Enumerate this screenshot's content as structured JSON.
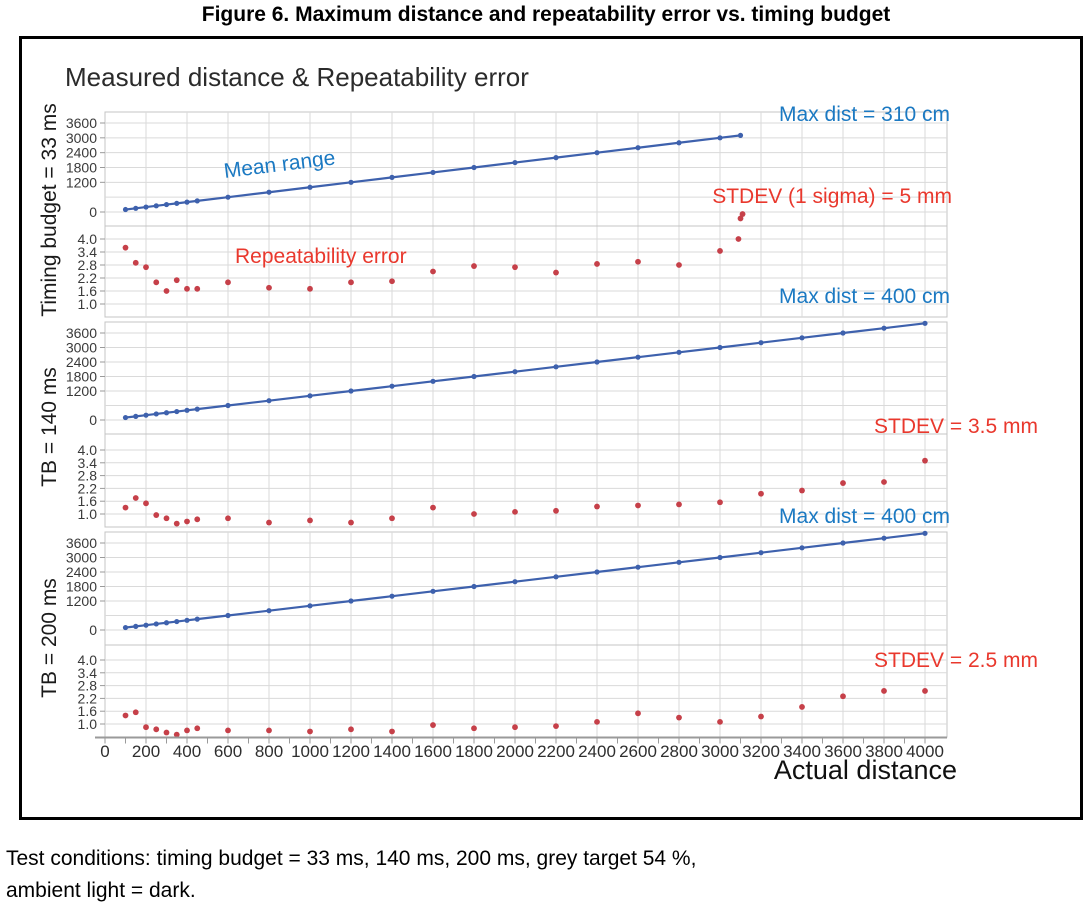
{
  "figure": {
    "title": "Figure 6. Maximum distance and repeatability error vs. timing budget",
    "caption_line1": "Test conditions: timing budget = 33 ms, 140 ms, 200 ms, grey target 54 %,",
    "caption_line2": "ambient light = dark."
  },
  "chart_data": {
    "type": "line",
    "title": "Measured distance & Repeatability error",
    "xlabel": "Actual distance",
    "x_ticks": [
      0,
      200,
      400,
      600,
      800,
      1000,
      1200,
      1400,
      1600,
      1800,
      2000,
      2200,
      2400,
      2600,
      2800,
      3000,
      3200,
      3400,
      3600,
      3800,
      4000
    ],
    "x_range": [
      0,
      4100
    ],
    "grid": true,
    "legend_position": "inline-annotations",
    "range_axis": {
      "ticks": [
        0,
        1200,
        1800,
        2400,
        3000,
        3600
      ],
      "unlabeled_gridlines": [
        600
      ]
    },
    "error_axis": {
      "ticks": [
        1.0,
        1.6,
        2.2,
        2.8,
        3.4,
        4.0
      ]
    },
    "series_labels": {
      "mean_range": "Mean range",
      "repeatability": "Repeatability error"
    },
    "colors": {
      "mean_range": "#3E61AD",
      "repeatability": "#C64049",
      "blue_text": "#1B79C2",
      "red_text": "#E9382D"
    },
    "panels": [
      {
        "group_label": "Timing budget = 33 ms",
        "max_dist_annotation": "Max dist = 310 cm",
        "stdev_annotation": "STDEV (1 sigma) = 5 mm",
        "mean_range": {
          "x": [
            100,
            150,
            200,
            250,
            300,
            350,
            400,
            450,
            600,
            800,
            1000,
            1200,
            1400,
            1600,
            1800,
            2000,
            2200,
            2400,
            2600,
            2800,
            3000,
            3100
          ],
          "y": [
            100,
            150,
            200,
            250,
            300,
            350,
            400,
            450,
            600,
            800,
            1000,
            1200,
            1400,
            1600,
            1800,
            2000,
            2200,
            2400,
            2600,
            2800,
            3000,
            3100
          ]
        },
        "repeatability": {
          "x": [
            100,
            150,
            200,
            250,
            300,
            350,
            400,
            450,
            600,
            800,
            1000,
            1200,
            1400,
            1600,
            1800,
            2000,
            2200,
            2400,
            2600,
            2800,
            3000,
            3090,
            3100,
            3110
          ],
          "y": [
            3.6,
            2.9,
            2.7,
            2.0,
            1.6,
            2.1,
            1.7,
            1.7,
            2.0,
            1.75,
            1.7,
            2.0,
            2.05,
            2.5,
            2.75,
            2.7,
            2.45,
            2.85,
            2.95,
            2.8,
            3.45,
            4.0,
            4.95,
            5.15
          ]
        }
      },
      {
        "group_label": "TB = 140 ms",
        "max_dist_annotation": "Max dist = 400 cm",
        "stdev_annotation": "STDEV = 3.5 mm",
        "mean_range": {
          "x": [
            100,
            150,
            200,
            250,
            300,
            350,
            400,
            450,
            600,
            800,
            1000,
            1200,
            1400,
            1600,
            1800,
            2000,
            2200,
            2400,
            2600,
            2800,
            3000,
            3200,
            3400,
            3600,
            3800,
            4000
          ],
          "y": [
            100,
            150,
            200,
            250,
            300,
            350,
            400,
            450,
            600,
            800,
            1000,
            1200,
            1400,
            1600,
            1800,
            2000,
            2200,
            2400,
            2600,
            2800,
            3000,
            3200,
            3400,
            3600,
            3800,
            4000
          ]
        },
        "repeatability": {
          "x": [
            100,
            150,
            200,
            250,
            300,
            350,
            400,
            450,
            600,
            800,
            1000,
            1200,
            1400,
            1600,
            1800,
            2000,
            2200,
            2400,
            2600,
            2800,
            3000,
            3200,
            3400,
            3600,
            3800,
            4000
          ],
          "y": [
            1.3,
            1.75,
            1.5,
            0.95,
            0.8,
            0.55,
            0.65,
            0.75,
            0.8,
            0.6,
            0.7,
            0.6,
            0.8,
            1.3,
            1.0,
            1.1,
            1.15,
            1.35,
            1.4,
            1.45,
            1.55,
            1.95,
            2.1,
            2.45,
            2.5,
            3.5
          ]
        }
      },
      {
        "group_label": "TB = 200 ms",
        "max_dist_annotation": "Max dist = 400 cm",
        "stdev_annotation": "STDEV =  2.5 mm",
        "mean_range": {
          "x": [
            100,
            150,
            200,
            250,
            300,
            350,
            400,
            450,
            600,
            800,
            1000,
            1200,
            1400,
            1600,
            1800,
            2000,
            2200,
            2400,
            2600,
            2800,
            3000,
            3200,
            3400,
            3600,
            3800,
            4000
          ],
          "y": [
            100,
            150,
            200,
            250,
            300,
            350,
            400,
            450,
            600,
            800,
            1000,
            1200,
            1400,
            1600,
            1800,
            2000,
            2200,
            2400,
            2600,
            2800,
            3000,
            3200,
            3400,
            3600,
            3800,
            4000
          ]
        },
        "repeatability": {
          "x": [
            100,
            150,
            200,
            250,
            300,
            350,
            400,
            450,
            600,
            800,
            1000,
            1200,
            1400,
            1600,
            1800,
            2000,
            2200,
            2400,
            2600,
            2800,
            3000,
            3200,
            3400,
            3600,
            3800,
            4000
          ],
          "y": [
            1.4,
            1.55,
            0.85,
            0.75,
            0.6,
            0.5,
            0.7,
            0.8,
            0.7,
            0.7,
            0.65,
            0.75,
            0.65,
            0.95,
            0.8,
            0.85,
            0.9,
            1.1,
            1.5,
            1.3,
            1.1,
            1.35,
            1.8,
            2.3,
            2.55,
            2.55
          ]
        }
      }
    ]
  }
}
